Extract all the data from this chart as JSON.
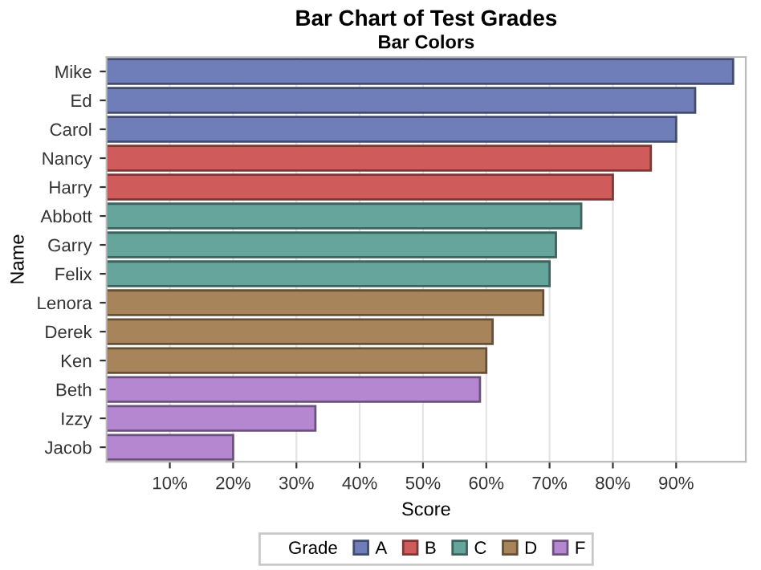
{
  "chart_data": {
    "type": "bar",
    "orientation": "horizontal",
    "title": "Bar Chart of Test Grades",
    "subtitle": "Bar Colors",
    "xlabel": "Score",
    "ylabel": "Name",
    "legend_title": "Grade",
    "legend": "bottom",
    "grid": "x",
    "categories": [
      "Mike",
      "Ed",
      "Carol",
      "Nancy",
      "Harry",
      "Abbott",
      "Garry",
      "Felix",
      "Lenora",
      "Derek",
      "Ken",
      "Beth",
      "Izzy",
      "Jacob"
    ],
    "series": [
      {
        "name": "A",
        "color": "#6f7eb8",
        "values": [
          99,
          93,
          90,
          null,
          null,
          null,
          null,
          null,
          null,
          null,
          null,
          null,
          null,
          null
        ]
      },
      {
        "name": "B",
        "color": "#d05b5b",
        "values": [
          null,
          null,
          null,
          86,
          80,
          null,
          null,
          null,
          null,
          null,
          null,
          null,
          null,
          null
        ]
      },
      {
        "name": "C",
        "color": "#66a59c",
        "values": [
          null,
          null,
          null,
          null,
          null,
          75,
          71,
          70,
          null,
          null,
          null,
          null,
          null,
          null
        ]
      },
      {
        "name": "D",
        "color": "#a8845a",
        "values": [
          null,
          null,
          null,
          null,
          null,
          null,
          null,
          null,
          69,
          61,
          60,
          null,
          null,
          null
        ]
      },
      {
        "name": "F",
        "color": "#b587d0",
        "values": [
          null,
          null,
          null,
          null,
          null,
          null,
          null,
          null,
          null,
          null,
          null,
          59,
          33,
          20
        ]
      }
    ],
    "xlim": [
      0,
      101
    ],
    "xticks": [
      {
        "value": 10,
        "label": "10%"
      },
      {
        "value": 20,
        "label": "20%"
      },
      {
        "value": 30,
        "label": "30%"
      },
      {
        "value": 40,
        "label": "40%"
      },
      {
        "value": 50,
        "label": "50%"
      },
      {
        "value": 60,
        "label": "60%"
      },
      {
        "value": 70,
        "label": "70%"
      },
      {
        "value": 80,
        "label": "80%"
      },
      {
        "value": 90,
        "label": "90%"
      }
    ]
  }
}
